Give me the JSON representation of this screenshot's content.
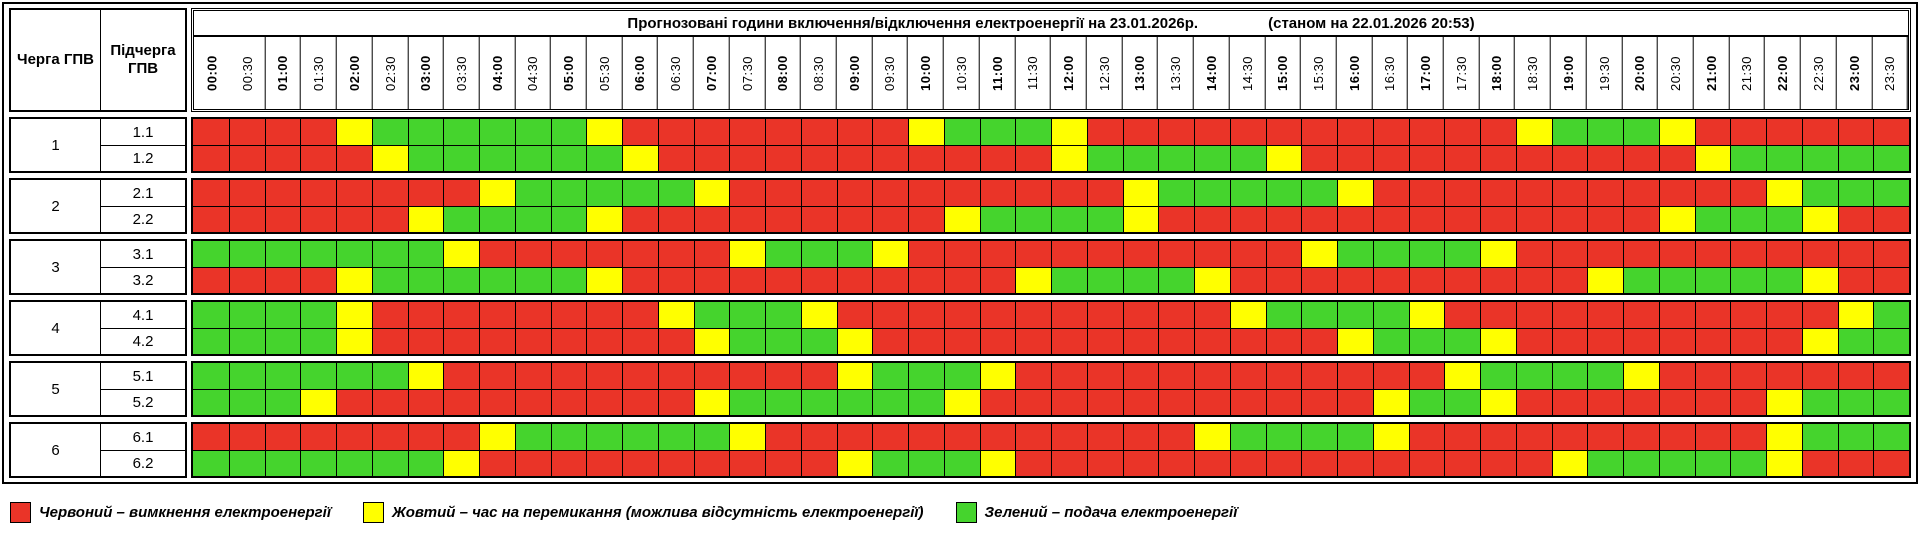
{
  "header": {
    "queue_col": "Черга\nГПВ",
    "subqueue_col": "Підчерга\nГПВ"
  },
  "colors": {
    "red": "#ea3428",
    "yellow": "#ffff00",
    "green": "#45d42d",
    "border": "#000000"
  },
  "legend": [
    {
      "key": "R",
      "color_key": "red",
      "label": "Червоний – вимкнення електроенергії"
    },
    {
      "key": "Y",
      "color_key": "yellow",
      "label": "Жовтий – час на перемикання (можлива відсутність електроенергії)"
    },
    {
      "key": "G",
      "color_key": "green",
      "label": "Зелений – подача електроенергії"
    }
  ],
  "chart_data": {
    "type": "heatmap",
    "title": "Прогнозовані години включення/відключення електроенергії на 23.01.2026р.",
    "status_note": "(станом на 22.01.2026 20:53)",
    "x_labels": [
      "00:00",
      "00:30",
      "01:00",
      "01:30",
      "02:00",
      "02:30",
      "03:00",
      "03:30",
      "04:00",
      "04:30",
      "05:00",
      "05:30",
      "06:00",
      "06:30",
      "07:00",
      "07:30",
      "08:00",
      "08:30",
      "09:00",
      "09:30",
      "10:00",
      "10:30",
      "11:00",
      "11:30",
      "12:00",
      "12:30",
      "13:00",
      "13:30",
      "14:00",
      "14:30",
      "15:00",
      "15:30",
      "16:00",
      "16:30",
      "17:00",
      "17:30",
      "18:00",
      "18:30",
      "19:00",
      "19:30",
      "20:00",
      "20:30",
      "21:00",
      "21:30",
      "22:00",
      "22:30",
      "23:00",
      "23:30"
    ],
    "value_legend": {
      "R": "вимкнення електроенергії",
      "Y": "час на перемикання (можлива відсутність електроенергії)",
      "G": "подача електроенергії"
    },
    "groups": [
      {
        "queue": "1",
        "subqueues": [
          {
            "label": "1.1",
            "pattern": "RRRRYGGGGGGYRRRRRRRRYGGGYRRRRRRRRRRRRYGGGYRRRRRR"
          },
          {
            "label": "1.2",
            "pattern": "RRRRRYGGGGGGYRRRRRRRRRRRYGGGGGYRRRRRRRRRRRYGGGGG"
          }
        ]
      },
      {
        "queue": "2",
        "subqueues": [
          {
            "label": "2.1",
            "pattern": "RRRRRRRRYGGGGGYRRRRRRRRRRRYGGGGGYRRRRRRRRRRRYGGG"
          },
          {
            "label": "2.2",
            "pattern": "RRRRRRYGGGGYRRRRRRRRRYGGGGYRRRRRRRRRRRRRRYGGGYRR"
          }
        ]
      },
      {
        "queue": "3",
        "subqueues": [
          {
            "label": "3.1",
            "pattern": "GGGGGGGYRRRRRRRYGGGYRRRRRRRRRRRYGGGGYRRRRRRRRRRR"
          },
          {
            "label": "3.2",
            "pattern": "RRRRYGGGGGGYRRRRRRRRRRRYGGGGYRRRRRRRRRRYGGGGGYRR"
          }
        ]
      },
      {
        "queue": "4",
        "subqueues": [
          {
            "label": "4.1",
            "pattern": "GGGGYRRRRRRRRYGGGYRRRRRRRRRRRYGGGGYRRRRRRRRRRRYG"
          },
          {
            "label": "4.2",
            "pattern": "GGGGYRRRRRRRRRYGGGYRRRRRRRRRRRRRYGGGYRRRRRRRRYGG"
          }
        ]
      },
      {
        "queue": "5",
        "subqueues": [
          {
            "label": "5.1",
            "pattern": "GGGGGGYRRRRRRRRRRRYGGGYRRRRRRRRRRRRYGGGGYRRRRRRR"
          },
          {
            "label": "5.2",
            "pattern": "GGGYRRRRRRRRRRYGGGGGGYRRRRRRRRRRRYGGYRRRRRRRYGGG"
          }
        ]
      },
      {
        "queue": "6",
        "subqueues": [
          {
            "label": "6.1",
            "pattern": "RRRRRRRRYGGGGGGYRRRRRRRRRRRRYGGGGYRRRRRRRRRRYGGG"
          },
          {
            "label": "6.2",
            "pattern": "GGGGGGGYRRRRRRRRRRYGGGYRRRRRRRRRRRRRRRYGGGGGYRRR"
          }
        ]
      }
    ]
  }
}
